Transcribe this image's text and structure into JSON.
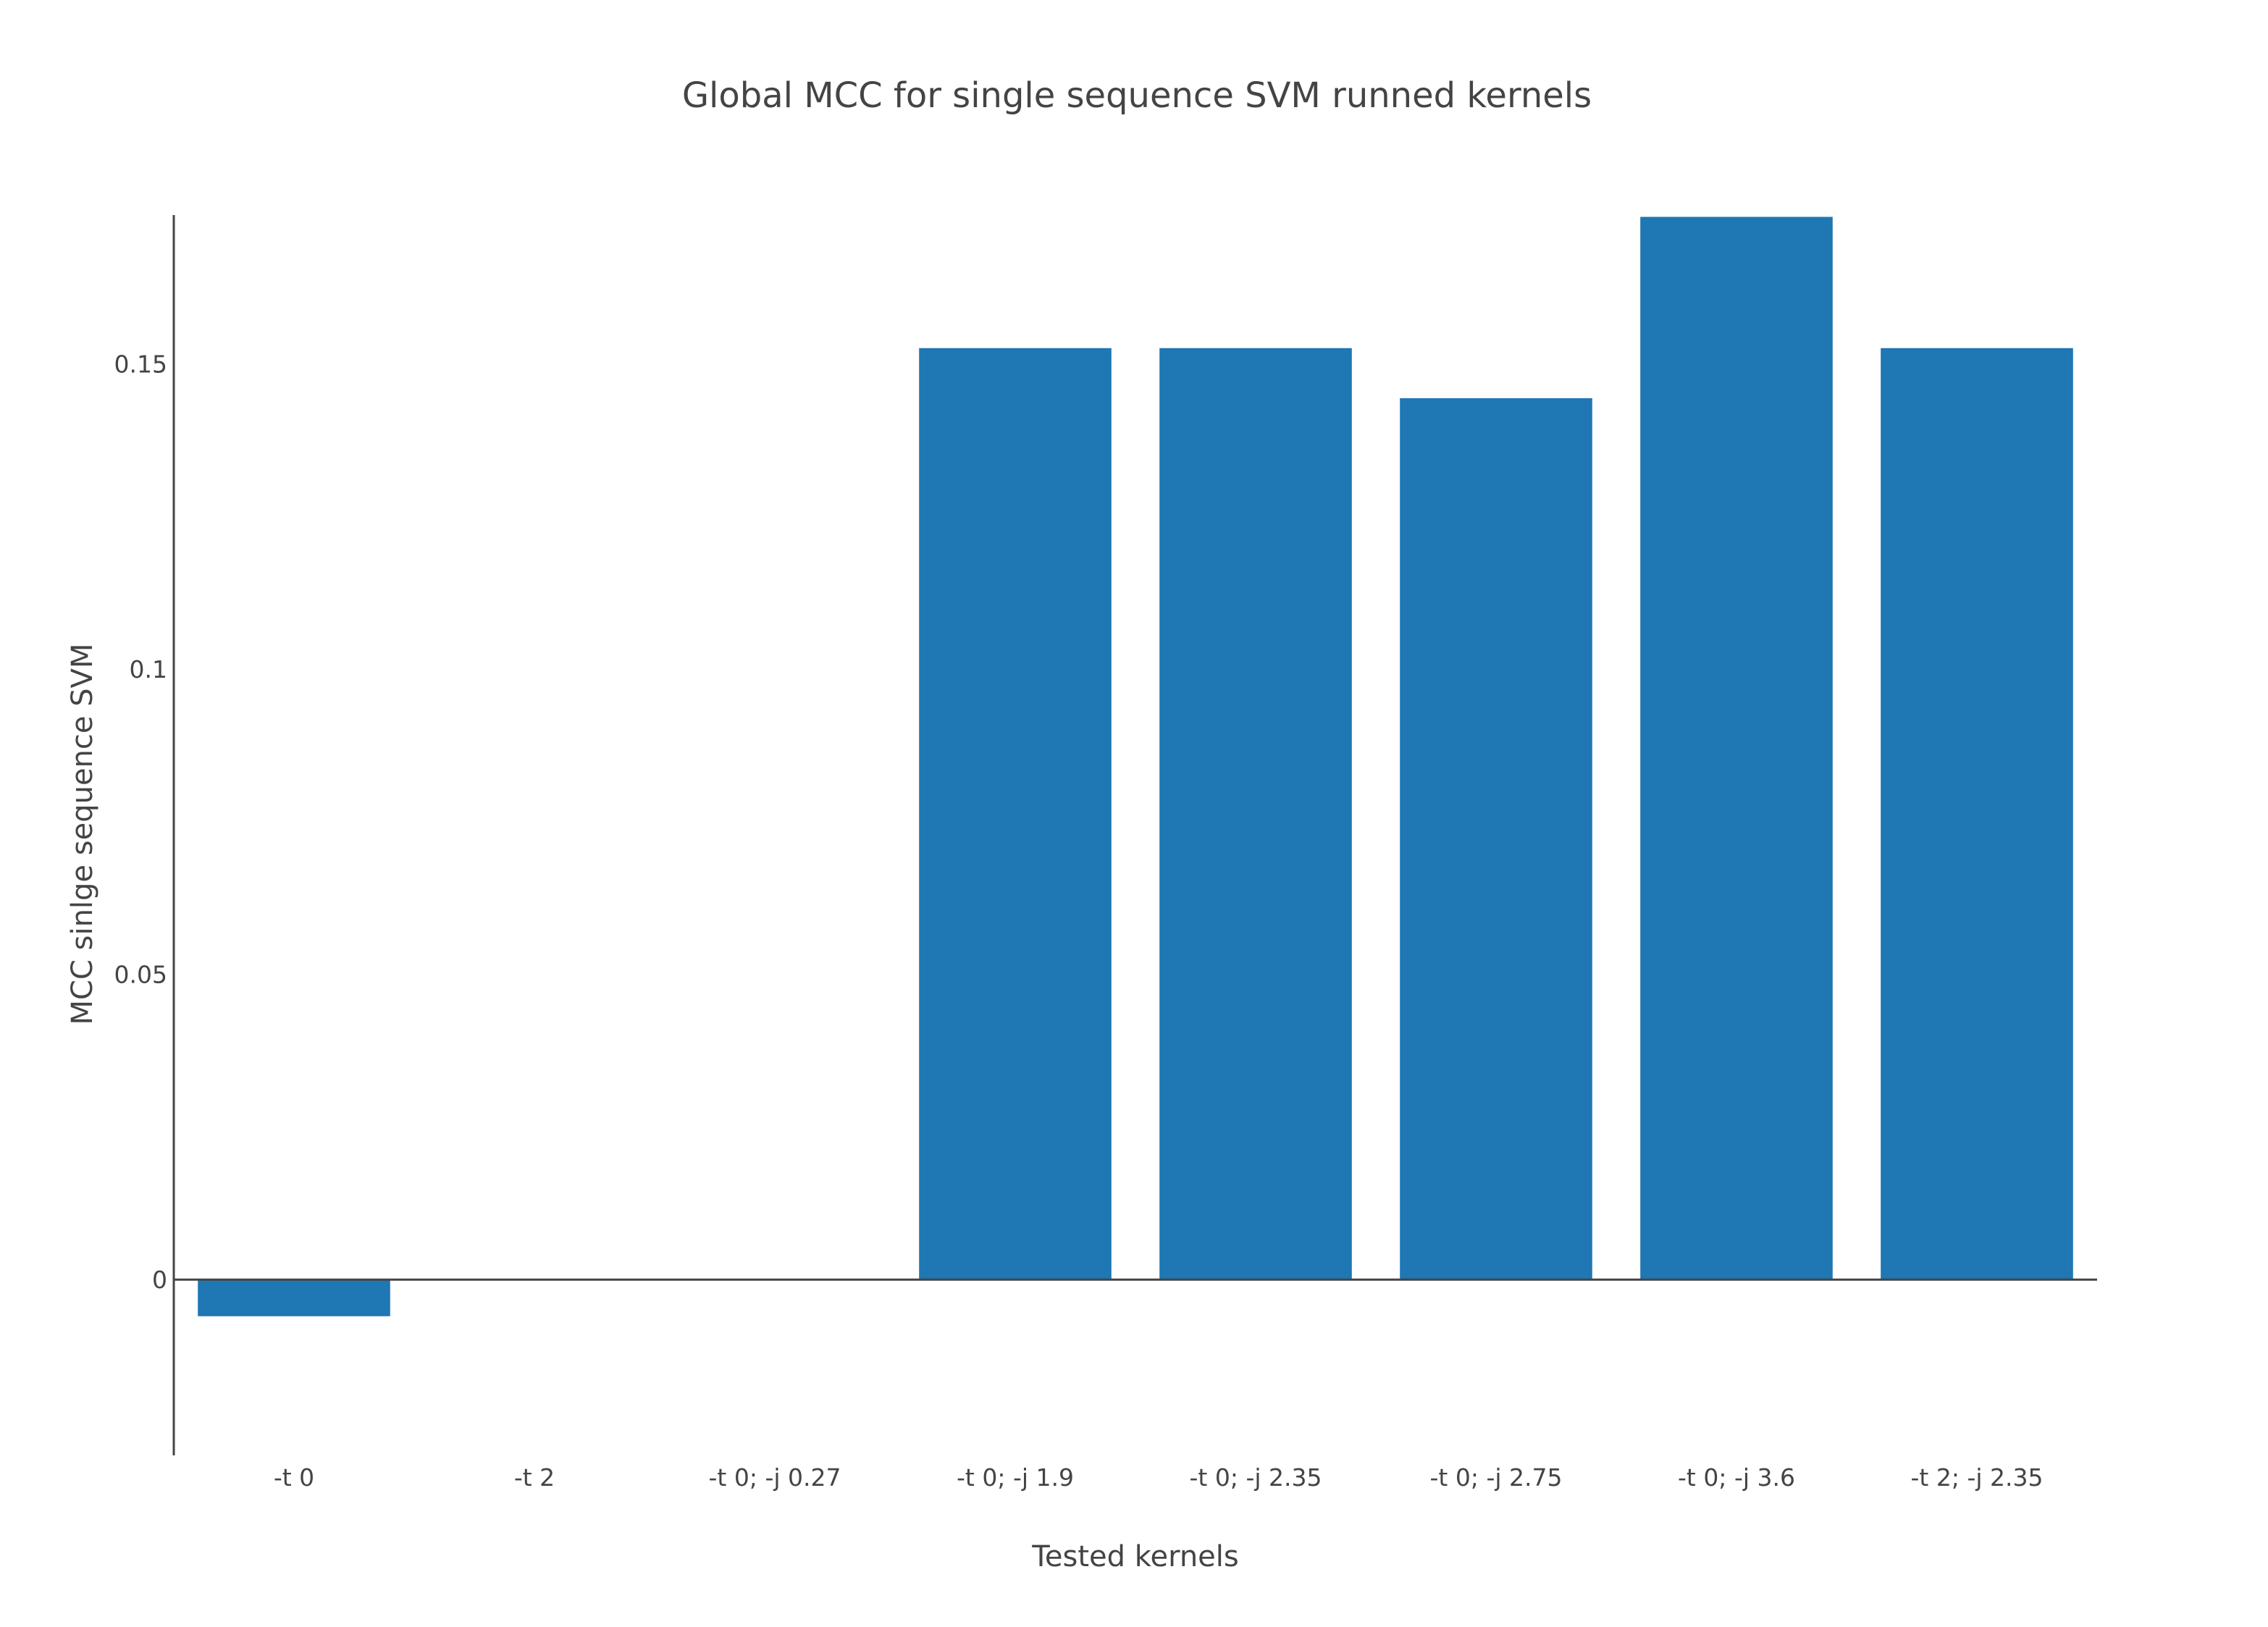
{
  "chart_data": {
    "type": "bar",
    "title": "Global MCC for single sequence SVM runned kernels",
    "xlabel": "Tested kernels",
    "ylabel": "MCC  sinlge sequence SVM",
    "categories": [
      "-t 0",
      "-t 2",
      "-t 0; -j 0.27",
      "-t 0; -j 1.9",
      "-t 0; -j 2.35",
      "-t 0; -j 2.75",
      "-t 0; -j 3.6",
      "-t 2; -j 2.35"
    ],
    "values": [
      -0.006,
      0,
      0,
      0.1526,
      0.1526,
      0.1444,
      0.1741,
      0.1526
    ],
    "ylim": [
      -0.0288,
      0.1744
    ],
    "yticks": [
      {
        "value": 0,
        "label": "0"
      },
      {
        "value": 0.05,
        "label": "0.05"
      },
      {
        "value": 0.1,
        "label": "0.1"
      },
      {
        "value": 0.15,
        "label": "0.15"
      }
    ],
    "bar_color": "#1f77b4",
    "grid": false,
    "legend": "none"
  }
}
